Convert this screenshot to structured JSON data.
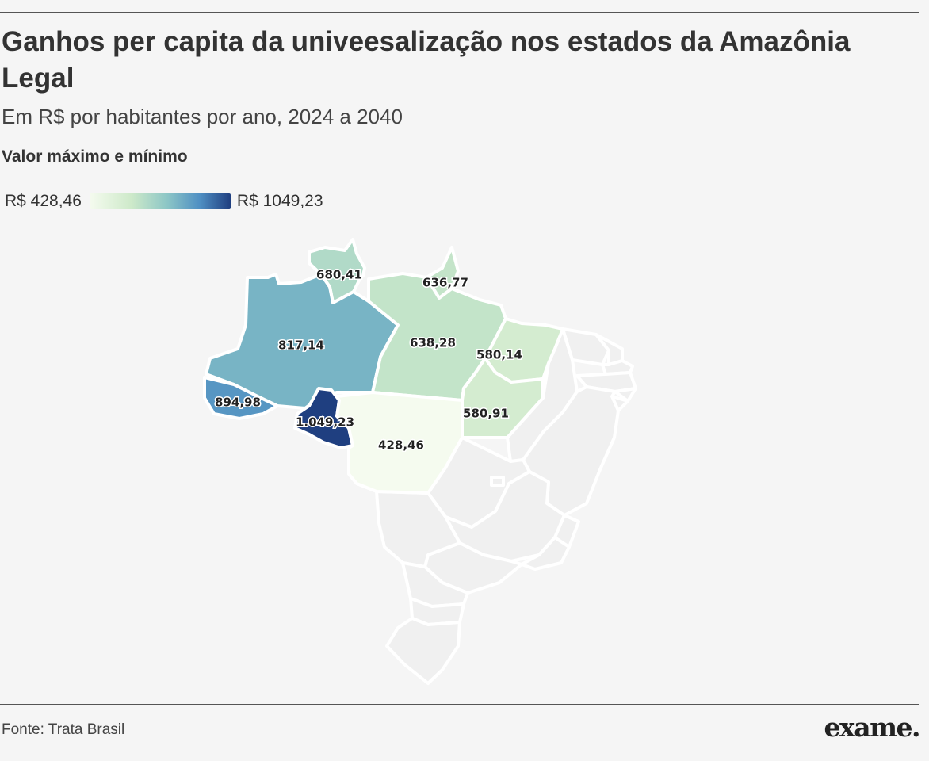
{
  "header": {
    "title": "Ganhos per capita da univeesalização nos estados da Amazônia Legal",
    "subtitle": "Em R$ por habitantes por ano, 2024 a 2040"
  },
  "legend": {
    "title": "Valor máximo e mínimo",
    "min_label": "R$ 428,46",
    "max_label": "R$ 1049,23",
    "min_value": 428.46,
    "max_value": 1049.23,
    "min_color": "#f5fbef",
    "max_color": "#1f3f80"
  },
  "map": {
    "states": [
      {
        "name_key": "roraima",
        "label": "680,41",
        "value": 680.41
      },
      {
        "name_key": "amapa",
        "label": "636,77",
        "value": 636.77
      },
      {
        "name_key": "amazonas",
        "label": "817,14",
        "value": 817.14
      },
      {
        "name_key": "para",
        "label": "638,28",
        "value": 638.28
      },
      {
        "name_key": "maranhao",
        "label": "580,14",
        "value": 580.14
      },
      {
        "name_key": "acre",
        "label": "894,98",
        "value": 894.98
      },
      {
        "name_key": "rondonia",
        "label": "1.049,23",
        "value": 1049.23
      },
      {
        "name_key": "tocantins",
        "label": "580,91",
        "value": 580.91
      },
      {
        "name_key": "mato-grosso",
        "label": "428,46",
        "value": 428.46
      }
    ],
    "other_states_color": "#f0f0f0",
    "border_color": "#ffffff"
  },
  "footer": {
    "source": "Fonte: Trata Brasil",
    "logo": "exame."
  }
}
